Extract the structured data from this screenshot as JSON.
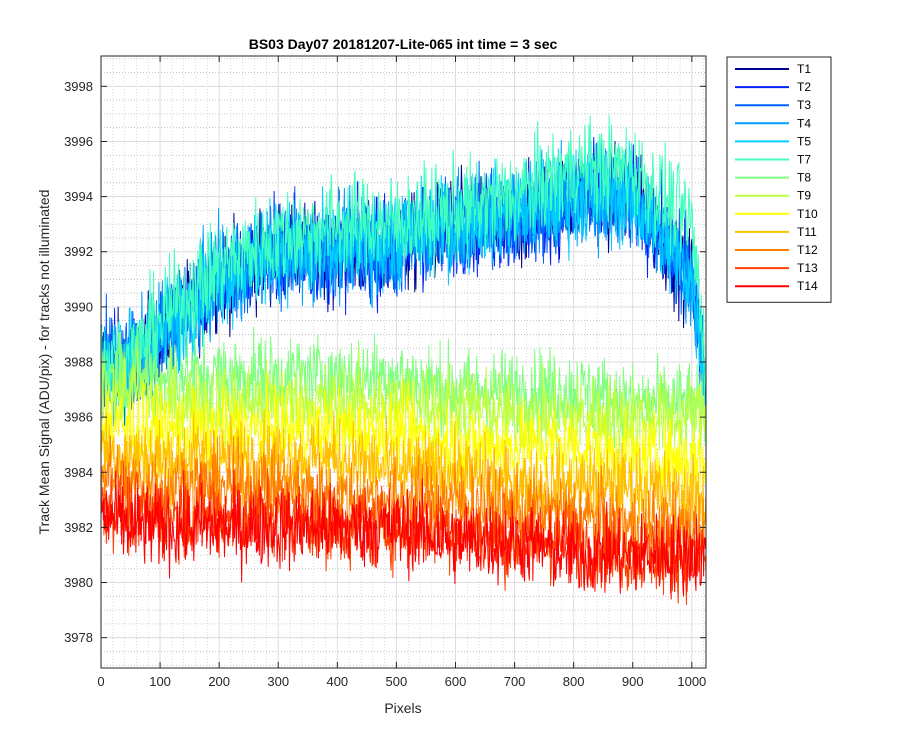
{
  "chart_data": {
    "type": "line",
    "title": "BS03 Day07 20181207-Lite-065 int time = 3 sec",
    "xlabel": "Pixels",
    "ylabel": "Track Mean Signal (ADU/pix) - for tracks not illuminated",
    "xlim": [
      0,
      1024
    ],
    "ylim": [
      3976.9,
      3999.1
    ],
    "xticks": [
      0,
      100,
      200,
      300,
      400,
      500,
      600,
      700,
      800,
      900,
      1000
    ],
    "yticks": [
      3978,
      3980,
      3982,
      3984,
      3986,
      3988,
      3990,
      3992,
      3994,
      3996,
      3998
    ],
    "grid": true,
    "minor_grid": true,
    "legend_position": "outside-top-right",
    "series": [
      {
        "name": "T1",
        "color": "#00008F",
        "x": [
          0,
          50,
          100,
          200,
          300,
          400,
          500,
          600,
          700,
          800,
          900,
          1000,
          1024
        ],
        "y": [
          3988,
          3988,
          3989,
          3991,
          3992,
          3992,
          3992,
          3993,
          3993,
          3994,
          3994,
          3991,
          3987
        ]
      },
      {
        "name": "T2",
        "color": "#0020FF",
        "x": [
          0,
          50,
          100,
          200,
          300,
          400,
          500,
          600,
          700,
          800,
          900,
          1000,
          1024
        ],
        "y": [
          3988,
          3988,
          3989,
          3991,
          3992,
          3992,
          3992,
          3993,
          3993,
          3994,
          3994,
          3991,
          3987
        ]
      },
      {
        "name": "T3",
        "color": "#0060FF",
        "x": [
          0,
          50,
          100,
          200,
          300,
          400,
          500,
          600,
          700,
          800,
          900,
          1000,
          1024
        ],
        "y": [
          3988,
          3988,
          3989,
          3991,
          3992,
          3992,
          3992,
          3993,
          3993,
          3994,
          3994,
          3991,
          3987
        ]
      },
      {
        "name": "T4",
        "color": "#00A0FF",
        "x": [
          0,
          50,
          100,
          200,
          300,
          400,
          500,
          600,
          700,
          800,
          900,
          1000,
          1024
        ],
        "y": [
          3988,
          3988,
          3989,
          3991,
          3992,
          3992,
          3992.5,
          3993,
          3993.5,
          3994,
          3994,
          3991,
          3987
        ]
      },
      {
        "name": "T5",
        "color": "#00CFFF",
        "x": [
          0,
          50,
          100,
          200,
          300,
          400,
          500,
          600,
          700,
          800,
          900,
          1000,
          1024
        ],
        "y": [
          3988,
          3988,
          3989,
          3991,
          3992,
          3992,
          3992.5,
          3993,
          3993.5,
          3994,
          3994,
          3991,
          3987
        ]
      },
      {
        "name": "T7",
        "color": "#40FFBF",
        "x": [
          0,
          50,
          100,
          200,
          300,
          400,
          500,
          600,
          700,
          800,
          900,
          1000,
          1024
        ],
        "y": [
          3988,
          3988,
          3989.5,
          3991.5,
          3992.5,
          3993,
          3993,
          3993.5,
          3994,
          3995,
          3995,
          3993,
          3988
        ]
      },
      {
        "name": "T8",
        "color": "#80FF80",
        "x": [
          0,
          50,
          100,
          200,
          300,
          400,
          500,
          600,
          700,
          800,
          900,
          1000,
          1024
        ],
        "y": [
          3987.5,
          3987.5,
          3987.5,
          3987.5,
          3987.5,
          3987.5,
          3987.5,
          3987,
          3987,
          3987,
          3986.5,
          3986.5,
          3986
        ]
      },
      {
        "name": "T9",
        "color": "#BFFF40",
        "x": [
          0,
          50,
          100,
          200,
          300,
          400,
          500,
          600,
          700,
          800,
          900,
          1000,
          1024
        ],
        "y": [
          3987,
          3987,
          3986.5,
          3986.5,
          3986.5,
          3986.5,
          3986.5,
          3986.5,
          3986,
          3986,
          3986,
          3986,
          3986
        ]
      },
      {
        "name": "T10",
        "color": "#FFFF00",
        "x": [
          0,
          50,
          100,
          200,
          300,
          400,
          500,
          600,
          700,
          800,
          900,
          1000,
          1024
        ],
        "y": [
          3986,
          3985.5,
          3985.5,
          3985.5,
          3985.5,
          3985.5,
          3985.5,
          3985,
          3985,
          3985,
          3984.5,
          3984.5,
          3984.5
        ]
      },
      {
        "name": "T11",
        "color": "#FFBF00",
        "x": [
          0,
          50,
          100,
          200,
          300,
          400,
          500,
          600,
          700,
          800,
          900,
          1000,
          1024
        ],
        "y": [
          3985,
          3984.5,
          3984.5,
          3984.5,
          3984.5,
          3984.5,
          3984,
          3984,
          3983.5,
          3983.5,
          3983.5,
          3983,
          3983
        ]
      },
      {
        "name": "T12",
        "color": "#FF8000",
        "x": [
          0,
          50,
          100,
          200,
          300,
          400,
          500,
          600,
          700,
          800,
          900,
          1000,
          1024
        ],
        "y": [
          3984,
          3983.5,
          3983.5,
          3983.5,
          3983.5,
          3983,
          3983,
          3983,
          3982.5,
          3982.5,
          3982,
          3982,
          3982
        ]
      },
      {
        "name": "T13",
        "color": "#FF4000",
        "x": [
          0,
          50,
          100,
          200,
          300,
          400,
          500,
          600,
          700,
          800,
          900,
          1000,
          1024
        ],
        "y": [
          3983,
          3982.5,
          3982.5,
          3982.5,
          3982.5,
          3982,
          3982,
          3982,
          3981.5,
          3981.5,
          3981,
          3981,
          3981
        ]
      },
      {
        "name": "T14",
        "color": "#FF0000",
        "x": [
          0,
          50,
          100,
          200,
          300,
          400,
          500,
          600,
          700,
          800,
          900,
          1000,
          1024
        ],
        "y": [
          3982.5,
          3982,
          3982,
          3982,
          3982,
          3982,
          3982,
          3981.5,
          3981.5,
          3981,
          3981,
          3981,
          3981
        ]
      }
    ]
  }
}
